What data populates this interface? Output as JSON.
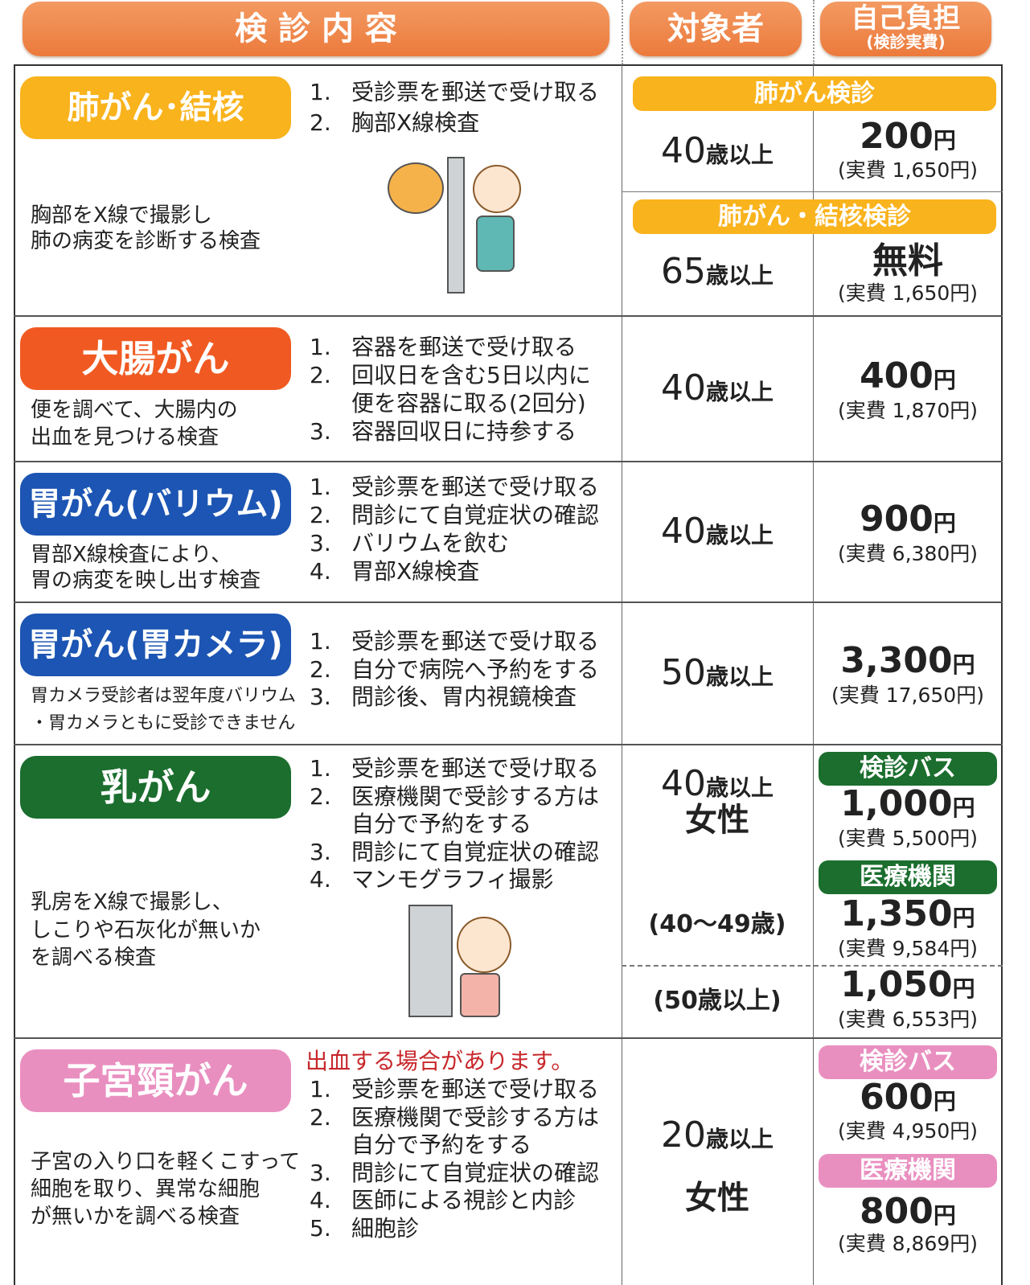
{
  "header": {
    "content": "検 診 内 容",
    "target": "対象者",
    "cost": "自己負担",
    "cost_note": "(検診実費)"
  },
  "rows": [
    {
      "name": "肺がん･結核",
      "description": [
        "胸部をX線で撮影し",
        "肺の病変を診断する検査"
      ],
      "steps": [
        {
          "no": "1.",
          "lines": [
            "受診票を郵送で受け取る"
          ]
        },
        {
          "no": "2.",
          "lines": [
            "胸部X線検査"
          ]
        }
      ],
      "screenings": [
        {
          "label": "肺がん検診",
          "age": {
            "num": "40",
            "unit": "歳以上"
          },
          "price": {
            "amount": "200",
            "unit": "円"
          },
          "actual": "(実費 1,650円)"
        },
        {
          "label": "肺がん・結核検診",
          "age": {
            "num": "65",
            "unit": "歳以上"
          },
          "price": {
            "amount": "無料"
          },
          "actual": "(実費 1,650円)"
        }
      ]
    },
    {
      "name": "大腸がん",
      "description": [
        "便を調べて、大腸内の",
        "出血を見つける検査"
      ],
      "steps": [
        {
          "no": "1.",
          "lines": [
            "容器を郵送で受け取る"
          ]
        },
        {
          "no": "2.",
          "lines": [
            "回収日を含む5日以内に",
            "便を容器に取る(2回分)"
          ]
        },
        {
          "no": "3.",
          "lines": [
            "容器回収日に持参する"
          ]
        }
      ],
      "age": {
        "num": "40",
        "unit": "歳以上"
      },
      "price": {
        "amount": "400",
        "unit": "円"
      },
      "actual": "(実費 1,870円)"
    },
    {
      "name": "胃がん(バリウム)",
      "description": [
        "胃部X線検査により、",
        "胃の病変を映し出す検査"
      ],
      "steps": [
        {
          "no": "1.",
          "lines": [
            "受診票を郵送で受け取る"
          ]
        },
        {
          "no": "2.",
          "lines": [
            "問診にて自覚症状の確認"
          ]
        },
        {
          "no": "3.",
          "lines": [
            "バリウムを飲む"
          ]
        },
        {
          "no": "4.",
          "lines": [
            "胃部X線検査"
          ]
        }
      ],
      "age": {
        "num": "40",
        "unit": "歳以上"
      },
      "price": {
        "amount": "900",
        "unit": "円"
      },
      "actual": "(実費 6,380円)"
    },
    {
      "name": "胃がん(胃カメラ)",
      "description": [
        "胃カメラ受診者は翌年度バリウム",
        "・胃カメラともに受診できません"
      ],
      "steps": [
        {
          "no": "1.",
          "lines": [
            "受診票を郵送で受け取る"
          ]
        },
        {
          "no": "2.",
          "lines": [
            "自分で病院へ予約をする"
          ]
        },
        {
          "no": "3.",
          "lines": [
            "問診後、胃内視鏡検査"
          ]
        }
      ],
      "age": {
        "num": "50",
        "unit": "歳以上"
      },
      "price": {
        "amount": "3,300",
        "unit": "円"
      },
      "actual": "(実費 17,650円)"
    },
    {
      "name": "乳がん",
      "description": [
        "乳房をX線で撮影し、",
        "しこりや石灰化が無いか",
        "を調べる検査"
      ],
      "steps": [
        {
          "no": "1.",
          "lines": [
            "受診票を郵送で受け取る"
          ]
        },
        {
          "no": "2.",
          "lines": [
            "医療機関で受診する方は",
            "自分で予約をする"
          ]
        },
        {
          "no": "3.",
          "lines": [
            "問診にて自覚症状の確認"
          ]
        },
        {
          "no": "4.",
          "lines": [
            "マンモグラフィ撮影"
          ]
        }
      ],
      "age": {
        "num": "40",
        "unit": "歳以上"
      },
      "sex": "女性",
      "subgroups": [
        "(40～49歳)",
        "(50歳以上)"
      ],
      "options": [
        {
          "label": "検診バス",
          "price": {
            "amount": "1,000",
            "unit": "円"
          },
          "actual": "(実費 5,500円)"
        },
        {
          "label": "医療機関",
          "price": {
            "amount": "1,350",
            "unit": "円"
          },
          "actual": "(実費 9,584円)"
        },
        {
          "price": {
            "amount": "1,050",
            "unit": "円"
          },
          "actual": "(実費 6,553円)"
        }
      ]
    },
    {
      "name": "子宮頸がん",
      "note": "出血する場合があります。",
      "description": [
        "子宮の入り口を軽くこすって",
        "細胞を取り、異常な細胞",
        "が無いかを調べる検査"
      ],
      "steps": [
        {
          "no": "1.",
          "lines": [
            "受診票を郵送で受け取る"
          ]
        },
        {
          "no": "2.",
          "lines": [
            "医療機関で受診する方は",
            "自分で予約をする"
          ]
        },
        {
          "no": "3.",
          "lines": [
            "問診にて自覚症状の確認"
          ]
        },
        {
          "no": "4.",
          "lines": [
            "医師による視診と内診"
          ]
        },
        {
          "no": "5.",
          "lines": [
            "細胞診"
          ]
        }
      ],
      "age": {
        "num": "20",
        "unit": "歳以上"
      },
      "sex": "女性",
      "options": [
        {
          "label": "検診バス",
          "price": {
            "amount": "600",
            "unit": "円"
          },
          "actual": "(実費 4,950円)"
        },
        {
          "label": "医療機関",
          "price": {
            "amount": "800",
            "unit": "円"
          },
          "actual": "(実費 8,869円)"
        }
      ]
    }
  ]
}
